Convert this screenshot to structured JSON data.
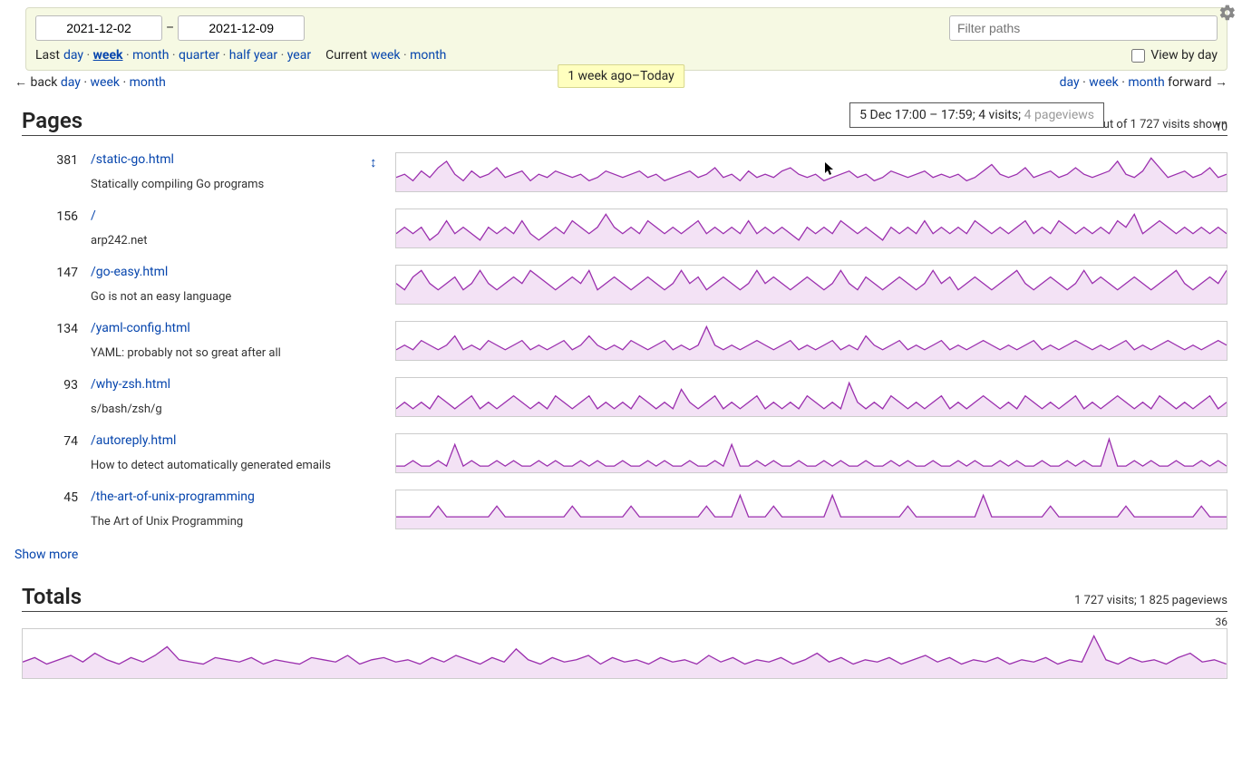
{
  "colors": {
    "link": "#0645ad",
    "sparkline_stroke": "#9b2fae",
    "sparkline_fill": "#f3e2f5",
    "header_bg": "#f6f9e3",
    "header_border": "#d9dcc5",
    "badge_bg": "#ffffbf",
    "badge_border": "#d6d68e",
    "chart_border": "#cccccc"
  },
  "header": {
    "date_from": "2021-12-02",
    "date_to": "2021-12-09",
    "date_sep": "–",
    "filter_placeholder": "Filter paths",
    "last_label": "Last",
    "last_links": [
      "day",
      "week",
      "month",
      "quarter",
      "half year",
      "year"
    ],
    "last_active": "week",
    "current_label": "Current",
    "current_links": [
      "week",
      "month"
    ],
    "view_by_day": "View by day"
  },
  "nav": {
    "back_prefix": "← back",
    "back_links": [
      "day",
      "week",
      "month"
    ],
    "range_badge": "1 week ago–Today",
    "fwd_links": [
      "day",
      "week",
      "month"
    ],
    "fwd_suffix": "forward →"
  },
  "pages_section": {
    "title": "Pages",
    "summary": "1 146 out of 1 727 visits shown",
    "y_label": "10",
    "tooltip_main": "5 Dec 17:00 – 17:59; 4 visits; ",
    "tooltip_faded": "4 pageviews",
    "show_more": "Show more"
  },
  "pages": [
    {
      "count": "381",
      "path": "/static-go.html",
      "desc": "Statically compiling Go programs",
      "expand": true,
      "spark": [
        4,
        5,
        3,
        6,
        4,
        7,
        9,
        5,
        3,
        6,
        4,
        5,
        7,
        4,
        5,
        6,
        3,
        5,
        4,
        6,
        5,
        4,
        5,
        3,
        4,
        6,
        5,
        4,
        5,
        6,
        4,
        5,
        3,
        4,
        5,
        6,
        4,
        5,
        7,
        4,
        5,
        3,
        6,
        4,
        5,
        4,
        6,
        7,
        5,
        4,
        5,
        3,
        4,
        5,
        6,
        4,
        5,
        3,
        4,
        6,
        5,
        4,
        5,
        6,
        4,
        5,
        4,
        5,
        3,
        4,
        6,
        8,
        5,
        4,
        5,
        7,
        4,
        5,
        6,
        4,
        5,
        7,
        5,
        4,
        5,
        6,
        9,
        5,
        4,
        6,
        10,
        7,
        4,
        5,
        6,
        4,
        5,
        7,
        4,
        5
      ]
    },
    {
      "count": "156",
      "path": "/",
      "desc": "arp242.net",
      "spark": [
        2,
        3,
        2,
        3,
        1,
        2,
        4,
        2,
        3,
        2,
        1,
        3,
        2,
        3,
        2,
        4,
        2,
        1,
        2,
        3,
        2,
        4,
        3,
        2,
        3,
        5,
        3,
        2,
        3,
        2,
        4,
        3,
        2,
        3,
        2,
        3,
        4,
        2,
        3,
        2,
        3,
        2,
        4,
        2,
        3,
        2,
        3,
        2,
        1,
        3,
        2,
        3,
        2,
        4,
        3,
        2,
        3,
        2,
        1,
        3,
        2,
        3,
        2,
        4,
        2,
        3,
        2,
        3,
        2,
        4,
        3,
        2,
        3,
        2,
        3,
        4,
        2,
        3,
        2,
        4,
        3,
        2,
        3,
        2,
        3,
        2,
        4,
        3,
        5,
        2,
        3,
        4,
        3,
        2,
        3,
        2,
        3,
        2,
        3,
        2
      ]
    },
    {
      "count": "147",
      "path": "/go-easy.html",
      "desc": "Go is not an easy language",
      "spark": [
        3,
        2,
        4,
        5,
        3,
        2,
        3,
        4,
        2,
        3,
        5,
        3,
        2,
        3,
        4,
        3,
        5,
        4,
        3,
        2,
        3,
        4,
        3,
        5,
        2,
        3,
        4,
        3,
        2,
        3,
        4,
        3,
        2,
        3,
        5,
        3,
        4,
        2,
        3,
        4,
        3,
        2,
        3,
        5,
        3,
        4,
        3,
        2,
        3,
        4,
        3,
        2,
        3,
        5,
        3,
        2,
        4,
        3,
        2,
        3,
        4,
        3,
        2,
        3,
        5,
        3,
        4,
        2,
        3,
        4,
        3,
        2,
        3,
        4,
        5,
        3,
        2,
        3,
        4,
        3,
        2,
        3,
        5,
        3,
        4,
        3,
        2,
        3,
        4,
        3,
        2,
        3,
        4,
        5,
        3,
        2,
        3,
        4,
        3,
        5
      ]
    },
    {
      "count": "134",
      "path": "/yaml-config.html",
      "desc": "YAML: probably not so great after all",
      "spark": [
        2,
        3,
        2,
        4,
        3,
        2,
        3,
        5,
        2,
        3,
        2,
        4,
        3,
        2,
        3,
        4,
        2,
        3,
        2,
        3,
        4,
        2,
        3,
        5,
        3,
        2,
        3,
        2,
        4,
        3,
        2,
        3,
        4,
        2,
        3,
        2,
        3,
        7,
        3,
        2,
        3,
        2,
        3,
        4,
        3,
        2,
        3,
        4,
        2,
        3,
        2,
        3,
        4,
        2,
        3,
        2,
        5,
        3,
        2,
        3,
        4,
        2,
        3,
        2,
        3,
        4,
        2,
        3,
        2,
        3,
        4,
        3,
        2,
        3,
        2,
        3,
        4,
        2,
        3,
        2,
        3,
        4,
        3,
        2,
        3,
        2,
        3,
        4,
        2,
        3,
        2,
        3,
        4,
        3,
        2,
        3,
        2,
        3,
        4,
        3
      ]
    },
    {
      "count": "93",
      "path": "/why-zsh.html",
      "desc": "s/bash/zsh/g",
      "spark": [
        1,
        2,
        1,
        2,
        1,
        3,
        2,
        1,
        2,
        3,
        1,
        2,
        1,
        2,
        3,
        2,
        1,
        2,
        1,
        3,
        2,
        1,
        2,
        3,
        1,
        2,
        1,
        2,
        1,
        3,
        2,
        1,
        2,
        1,
        4,
        2,
        1,
        2,
        3,
        1,
        2,
        1,
        2,
        3,
        1,
        2,
        1,
        2,
        1,
        3,
        2,
        1,
        2,
        1,
        5,
        2,
        1,
        2,
        1,
        3,
        2,
        1,
        2,
        1,
        2,
        3,
        1,
        2,
        1,
        2,
        3,
        2,
        1,
        2,
        1,
        3,
        2,
        1,
        2,
        1,
        2,
        3,
        1,
        2,
        1,
        2,
        3,
        2,
        1,
        2,
        1,
        3,
        2,
        1,
        2,
        1,
        2,
        3,
        1,
        2
      ]
    },
    {
      "count": "74",
      "path": "/autoreply.html",
      "desc": "How to detect automatically generated emails",
      "spark": [
        1,
        1,
        2,
        1,
        1,
        2,
        1,
        5,
        1,
        2,
        1,
        1,
        2,
        1,
        2,
        1,
        1,
        2,
        1,
        2,
        1,
        1,
        2,
        1,
        2,
        1,
        1,
        2,
        1,
        1,
        2,
        1,
        2,
        1,
        1,
        2,
        1,
        1,
        2,
        1,
        5,
        1,
        1,
        2,
        1,
        2,
        1,
        1,
        2,
        1,
        1,
        2,
        1,
        2,
        1,
        1,
        2,
        1,
        1,
        2,
        1,
        2,
        1,
        1,
        2,
        1,
        1,
        2,
        1,
        2,
        1,
        1,
        2,
        1,
        2,
        1,
        1,
        2,
        1,
        1,
        2,
        1,
        2,
        1,
        1,
        6,
        1,
        1,
        2,
        1,
        2,
        1,
        1,
        2,
        1,
        1,
        2,
        1,
        2,
        1
      ]
    },
    {
      "count": "45",
      "path": "/the-art-of-unix-programming",
      "desc": "The Art of Unix Programming",
      "spark": [
        1,
        1,
        1,
        1,
        1,
        2,
        1,
        1,
        1,
        1,
        1,
        1,
        2,
        1,
        1,
        1,
        1,
        1,
        1,
        1,
        1,
        2,
        1,
        1,
        1,
        1,
        1,
        1,
        2,
        1,
        1,
        1,
        1,
        1,
        1,
        1,
        1,
        2,
        1,
        1,
        1,
        3,
        1,
        1,
        1,
        2,
        1,
        1,
        1,
        1,
        1,
        1,
        3,
        1,
        1,
        1,
        1,
        1,
        1,
        1,
        1,
        2,
        1,
        1,
        1,
        1,
        1,
        1,
        1,
        1,
        3,
        1,
        1,
        1,
        1,
        1,
        1,
        1,
        2,
        1,
        1,
        1,
        1,
        1,
        1,
        1,
        1,
        2,
        1,
        1,
        1,
        1,
        1,
        1,
        1,
        1,
        2,
        1,
        1,
        1
      ]
    }
  ],
  "totals": {
    "title": "Totals",
    "summary": "1 727 visits; 1 825 pageviews",
    "y_label": "36",
    "spark": [
      8,
      10,
      7,
      9,
      11,
      8,
      12,
      9,
      7,
      10,
      8,
      11,
      15,
      9,
      8,
      7,
      10,
      9,
      8,
      10,
      7,
      9,
      8,
      7,
      10,
      9,
      8,
      11,
      7,
      9,
      10,
      8,
      9,
      7,
      10,
      8,
      11,
      9,
      7,
      10,
      8,
      14,
      9,
      7,
      10,
      8,
      9,
      11,
      7,
      10,
      8,
      9,
      7,
      10,
      8,
      9,
      7,
      11,
      8,
      10,
      7,
      9,
      8,
      10,
      7,
      9,
      12,
      8,
      10,
      7,
      9,
      8,
      10,
      7,
      9,
      11,
      8,
      10,
      7,
      9,
      8,
      10,
      7,
      9,
      8,
      10,
      7,
      9,
      8,
      20,
      9,
      7,
      10,
      8,
      9,
      7,
      10,
      12,
      8,
      9,
      7
    ]
  }
}
